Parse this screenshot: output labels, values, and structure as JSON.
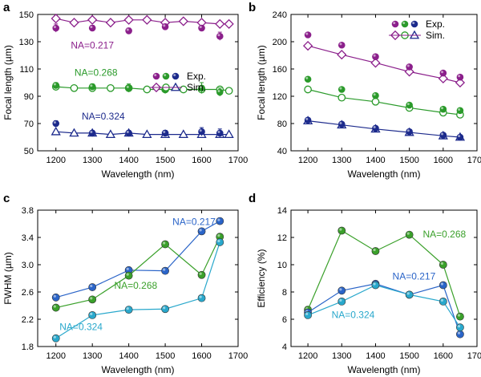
{
  "chart_data": [
    {
      "panel": "a",
      "type": "scatter",
      "xlabel": "Wavelength (nm)",
      "ylabel": "Focal length (µm)",
      "xlim": [
        1150,
        1700
      ],
      "ylim": [
        50,
        150
      ],
      "xticks": [
        1200,
        1300,
        1400,
        1500,
        1600,
        1700
      ],
      "yticks": [
        50,
        70,
        90,
        110,
        130,
        150
      ],
      "legend": {
        "placement": "right-middle",
        "entries": [
          {
            "label": "Exp.",
            "marker": "dot"
          },
          {
            "label": "Sim.",
            "marker": "open"
          }
        ]
      },
      "series": [
        {
          "label": "NA=0.217",
          "color": "#8b1f8b",
          "shape": "diamond",
          "label_pos": [
            1300,
            125
          ],
          "exp_x": [
            1200,
            1300,
            1400,
            1500,
            1600,
            1650
          ],
          "exp_y": [
            140,
            140,
            138,
            141,
            140,
            134
          ],
          "exp_err": [
            3,
            2,
            2,
            2,
            2,
            3
          ],
          "sim_x": [
            1200,
            1250,
            1300,
            1350,
            1400,
            1450,
            1500,
            1550,
            1600,
            1650,
            1675
          ],
          "sim_y": [
            147,
            144,
            146,
            144,
            146,
            146,
            144,
            145,
            144,
            143,
            143
          ]
        },
        {
          "label": "NA=0.268",
          "color": "#2a9a2a",
          "shape": "circle",
          "label_pos": [
            1310,
            105
          ],
          "exp_x": [
            1200,
            1300,
            1400,
            1500,
            1600,
            1650
          ],
          "exp_y": [
            98,
            97,
            96,
            95,
            96,
            93
          ],
          "exp_err": [
            2,
            2,
            3,
            3,
            4,
            3
          ],
          "sim_x": [
            1200,
            1250,
            1300,
            1350,
            1400,
            1450,
            1500,
            1550,
            1600,
            1650,
            1675
          ],
          "sim_y": [
            97,
            96,
            96,
            96,
            96,
            95,
            95,
            95,
            95,
            95,
            94
          ]
        },
        {
          "label": "NA=0.324",
          "color": "#1c2a8c",
          "shape": "triangle",
          "label_pos": [
            1330,
            73
          ],
          "exp_x": [
            1200,
            1300,
            1400,
            1500,
            1600,
            1650
          ],
          "exp_y": [
            70,
            63,
            63,
            63,
            64,
            63
          ],
          "exp_err": [
            2,
            2,
            2,
            2,
            3,
            3
          ],
          "sim_x": [
            1200,
            1250,
            1300,
            1350,
            1400,
            1450,
            1500,
            1550,
            1600,
            1650,
            1675
          ],
          "sim_y": [
            64,
            63,
            63,
            62,
            63,
            62,
            62,
            62,
            62,
            62,
            62
          ]
        }
      ]
    },
    {
      "panel": "b",
      "type": "scatter",
      "xlabel": "Wavelength (nm)",
      "ylabel": "Focal length (µm)",
      "xlim": [
        1150,
        1700
      ],
      "ylim": [
        40,
        240
      ],
      "xticks": [
        1200,
        1300,
        1400,
        1500,
        1600,
        1700
      ],
      "yticks": [
        40,
        80,
        120,
        160,
        200,
        240
      ],
      "legend": {
        "placement": "top-right",
        "entries": [
          {
            "label": "Exp.",
            "marker": "dot"
          },
          {
            "label": "Sim.",
            "marker": "open"
          }
        ]
      },
      "series": [
        {
          "color": "#8b1f8b",
          "shape": "diamond",
          "exp_x": [
            1200,
            1300,
            1400,
            1500,
            1600,
            1650
          ],
          "exp_y": [
            210,
            195,
            178,
            163,
            154,
            148
          ],
          "sim_x": [
            1200,
            1300,
            1400,
            1500,
            1600,
            1650
          ],
          "sim_y": [
            194,
            181,
            169,
            156,
            146,
            140
          ]
        },
        {
          "color": "#2a9a2a",
          "shape": "circle",
          "exp_x": [
            1200,
            1300,
            1400,
            1500,
            1600,
            1650
          ],
          "exp_y": [
            145,
            130,
            121,
            107,
            101,
            99
          ],
          "sim_x": [
            1200,
            1300,
            1400,
            1500,
            1600,
            1650
          ],
          "sim_y": [
            130,
            118,
            112,
            103,
            96,
            93
          ]
        },
        {
          "color": "#1c2a8c",
          "shape": "triangle",
          "exp_x": [
            1200,
            1300,
            1400,
            1500,
            1600,
            1650
          ],
          "exp_y": [
            85,
            79,
            73,
            68,
            63,
            60
          ],
          "sim_x": [
            1200,
            1300,
            1400,
            1500,
            1600,
            1650
          ],
          "sim_y": [
            84,
            78,
            72,
            67,
            62,
            60
          ]
        }
      ]
    },
    {
      "panel": "c",
      "type": "line",
      "xlabel": "Wavelength (nm)",
      "ylabel": "FWHM (µm)",
      "xlim": [
        1150,
        1700
      ],
      "ylim": [
        1.8,
        3.8
      ],
      "xticks": [
        1200,
        1300,
        1400,
        1500,
        1600,
        1700
      ],
      "yticks": [
        1.8,
        2.2,
        2.6,
        3.0,
        3.4,
        3.8
      ],
      "ytick_labels": [
        "1.8",
        "2.2",
        "2.6",
        "3.0",
        "3.4",
        "3.8"
      ],
      "x": [
        1200,
        1300,
        1400,
        1500,
        1600,
        1650
      ],
      "series": [
        {
          "label": "NA=0.217",
          "color": "#2a64c8",
          "values": [
            2.52,
            2.67,
            2.92,
            2.91,
            3.49,
            3.64
          ],
          "label_pos": [
            1520,
            3.58
          ]
        },
        {
          "label": "NA=0.268",
          "color": "#3aa02a",
          "values": [
            2.37,
            2.49,
            2.84,
            3.3,
            2.85,
            3.41
          ],
          "label_pos": [
            1360,
            2.65
          ]
        },
        {
          "label": "NA=0.324",
          "color": "#29a8cc",
          "values": [
            1.92,
            2.26,
            2.34,
            2.35,
            2.51,
            3.33
          ],
          "label_pos": [
            1210,
            2.04
          ]
        }
      ]
    },
    {
      "panel": "d",
      "type": "line",
      "xlabel": "Wavelength (nm)",
      "ylabel": "Efficiency (%)",
      "xlim": [
        1150,
        1700
      ],
      "ylim": [
        4,
        14
      ],
      "xticks": [
        1200,
        1300,
        1400,
        1500,
        1600,
        1700
      ],
      "yticks": [
        4,
        6,
        8,
        10,
        12,
        14
      ],
      "x": [
        1200,
        1300,
        1400,
        1500,
        1600,
        1650
      ],
      "series": [
        {
          "label": "NA=0.268",
          "color": "#3aa02a",
          "values": [
            6.7,
            12.5,
            11.0,
            12.2,
            10.0,
            6.2
          ],
          "label_pos": [
            1540,
            12.0
          ]
        },
        {
          "label": "NA=0.217",
          "color": "#2a64c8",
          "values": [
            6.5,
            8.1,
            8.6,
            7.8,
            8.5,
            4.9
          ],
          "label_pos": [
            1450,
            8.9
          ]
        },
        {
          "label": "NA=0.324",
          "color": "#29a8cc",
          "values": [
            6.3,
            7.3,
            8.5,
            7.8,
            7.3,
            5.4
          ],
          "label_pos": [
            1270,
            6.1
          ]
        }
      ]
    }
  ]
}
